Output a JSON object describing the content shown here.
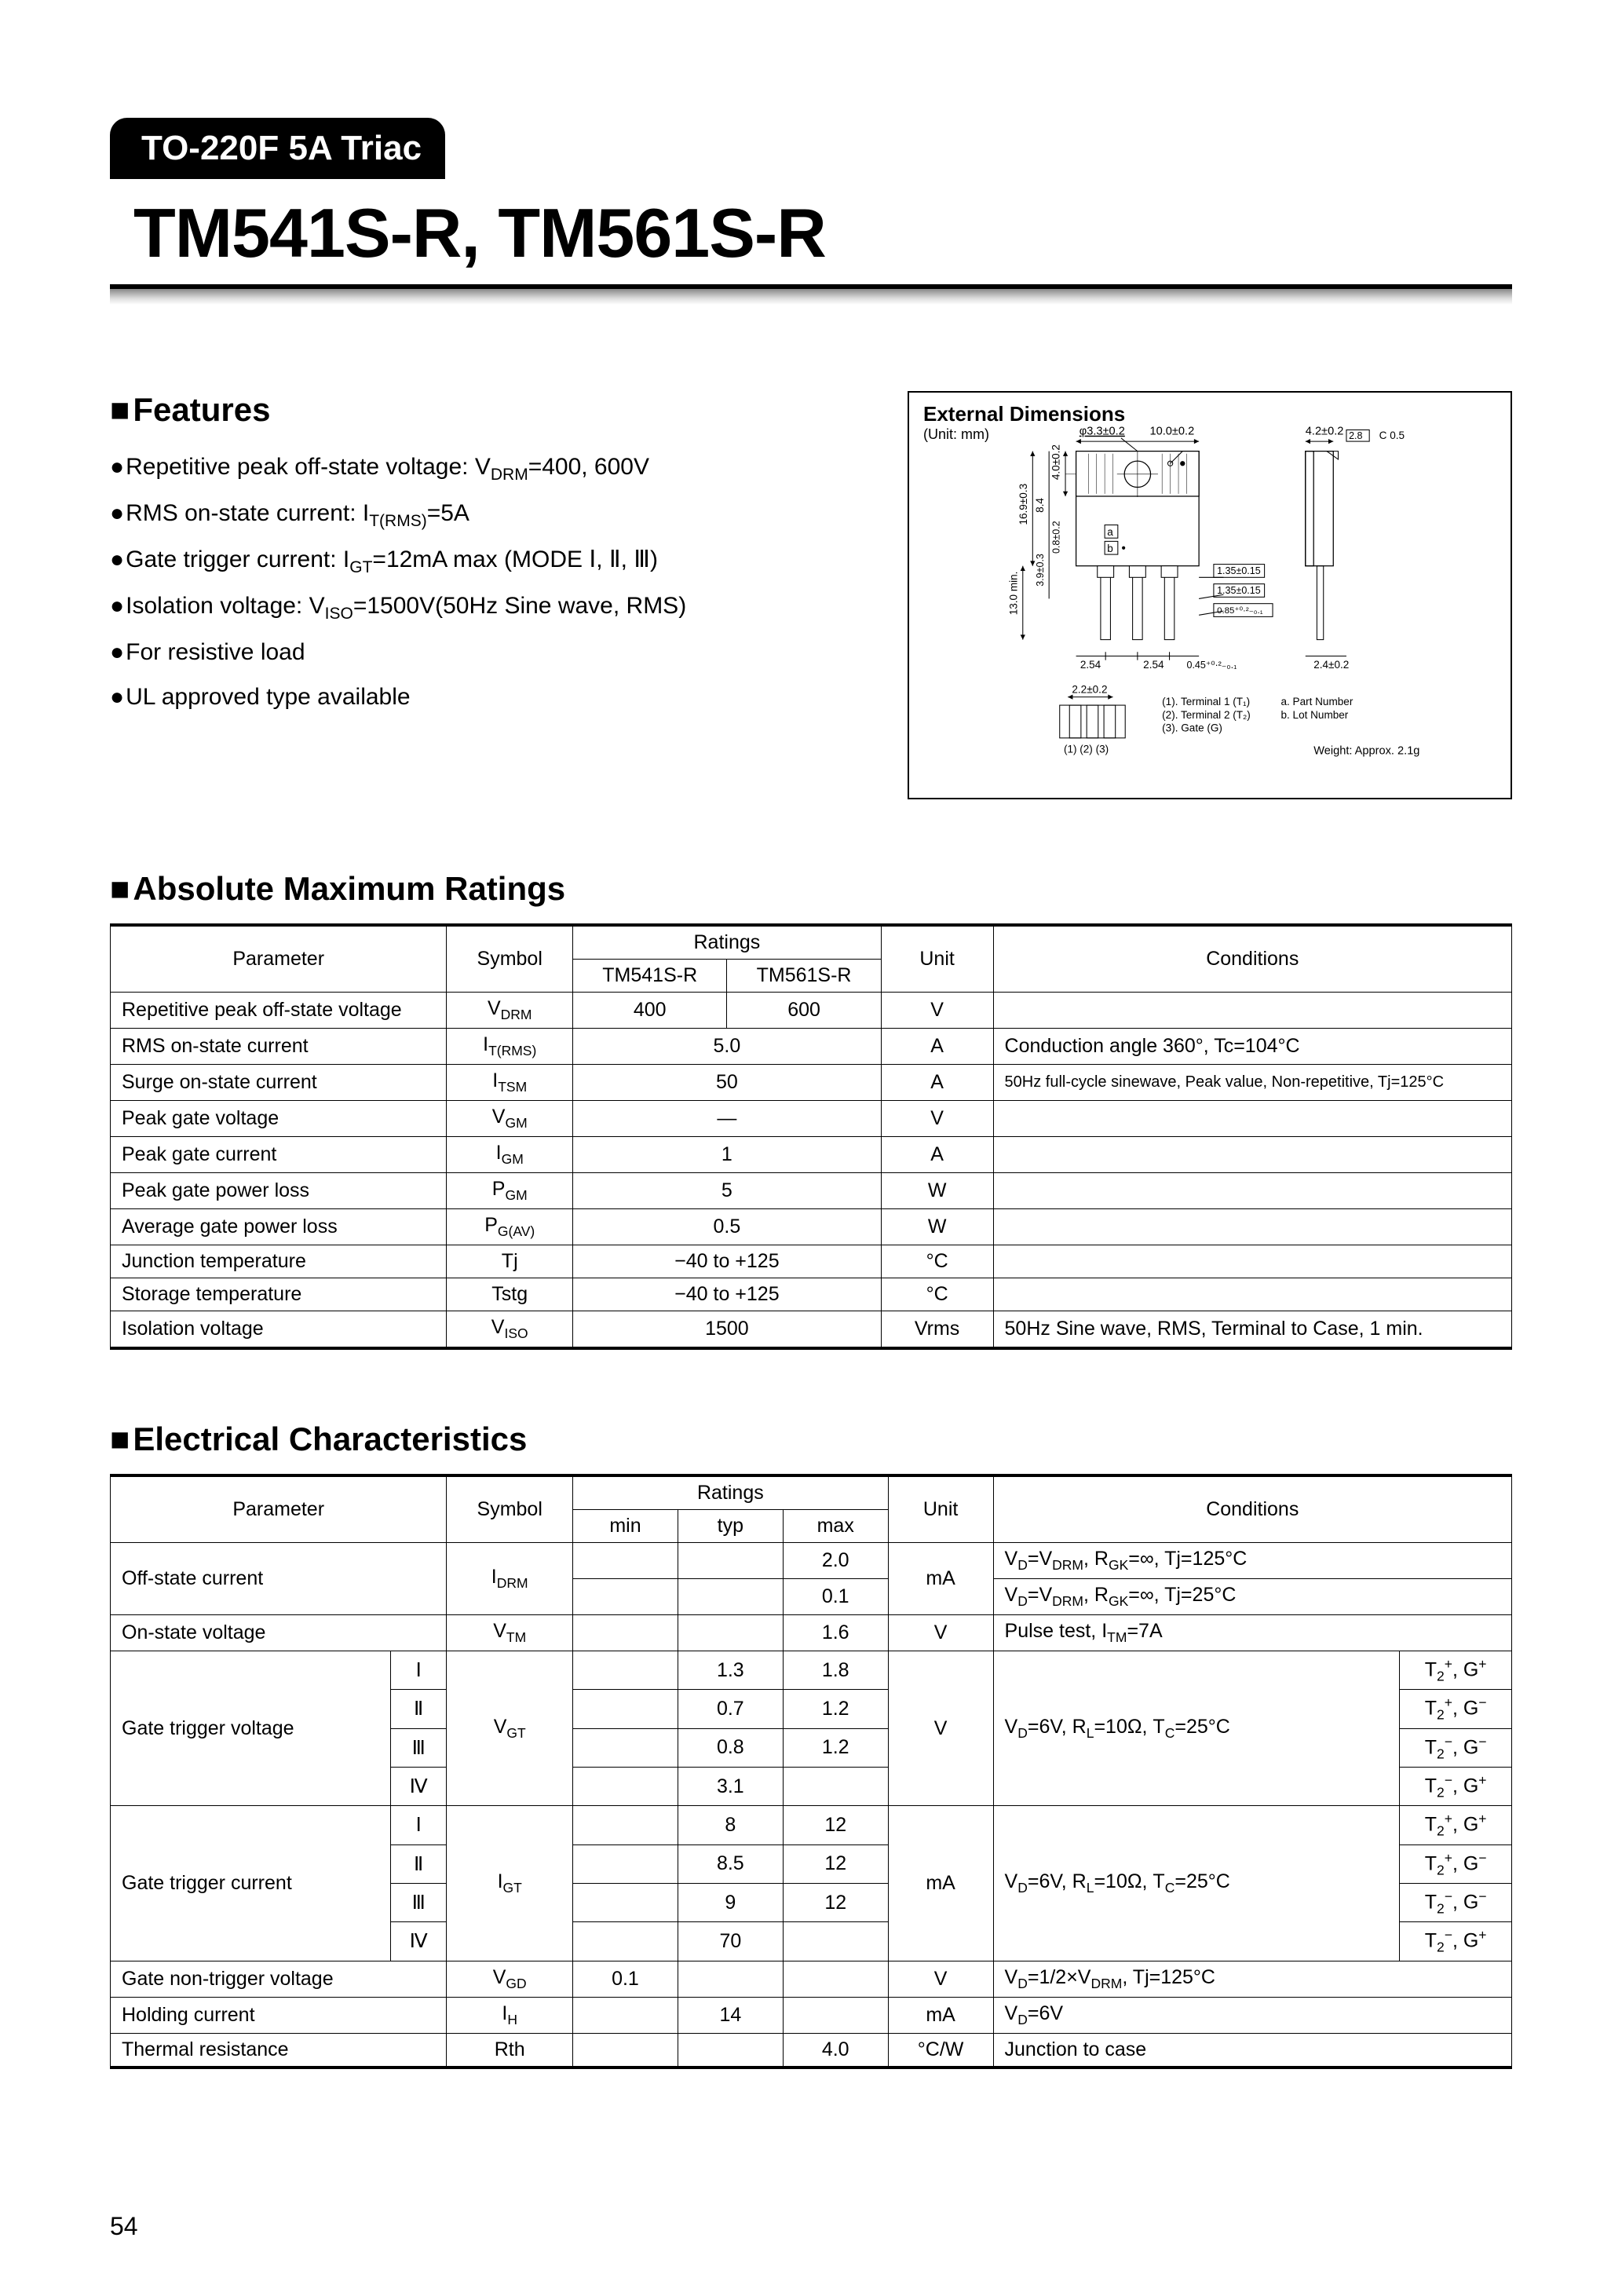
{
  "header": {
    "tag": "TO-220F 5A Triac",
    "title": "TM541S-R, TM561S-R"
  },
  "features": {
    "heading": "Features",
    "items": [
      "Repetitive peak off-state voltage: V<sub>DRM</sub>=400, 600V",
      "RMS on-state current: I<sub>T(RMS)</sub>=5A",
      "Gate trigger current: I<sub>GT</sub>=12mA max (MODE <span class='roman'>Ⅰ</span>, <span class='roman'>Ⅱ</span>, <span class='roman'>Ⅲ</span>)",
      "Isolation voltage: V<sub>ISO</sub>=1500V(50Hz Sine wave, RMS)",
      "For resistive load",
      "UL approved type available"
    ]
  },
  "dimensions": {
    "title": "External Dimensions",
    "unit": "(Unit: mm)",
    "labels": {
      "d1": "φ3.3±0.2",
      "d2": "10.0±0.2",
      "d3": "4.2±0.2",
      "d4": "2.8",
      "d5": "C 0.5",
      "d6": "4.0±0.2",
      "d7": "8.4",
      "d8": "16.9±0.3",
      "d9": "0.8±0.2",
      "d10": "3.9±0.3",
      "d11": "13.0 min.",
      "d12": "1.35±0.15",
      "d13": "1.35±0.15",
      "d14": "0.85⁺⁰·²₋₀.₁",
      "d15": "2.54",
      "d151": "2.54",
      "d16": "0.45⁺⁰·²₋₀.₁",
      "d17": "2.4±0.2",
      "d18": "2.2±0.2",
      "t1": "(1). Terminal 1 (T₁)",
      "t2": "(2). Terminal 2 (T₂)",
      "t3": "(3). Gate (G)",
      "a": "a. Part Number",
      "b": "b. Lot Number",
      "la": "a",
      "lb": "b",
      "pins": "(1) (2) (3)",
      "weight": "Weight: Approx. 2.1g"
    }
  },
  "amr": {
    "heading": "Absolute Maximum Ratings",
    "head": {
      "param": "Parameter",
      "symbol": "Symbol",
      "ratings": "Ratings",
      "p1": "TM541S-R",
      "p2": "TM561S-R",
      "unit": "Unit",
      "cond": "Conditions"
    },
    "rows": [
      {
        "param": "Repetitive peak off-state voltage",
        "sym": "V<sub>DRM</sub>",
        "r1": "400",
        "r2": "600",
        "unit": "V",
        "cond": ""
      },
      {
        "param": "RMS on-state current",
        "sym": "I<sub>T(RMS)</sub>",
        "r": "5.0",
        "unit": "A",
        "cond": "Conduction angle 360°, Tc=104°C"
      },
      {
        "param": "Surge on-state current",
        "sym": "I<sub>TSM</sub>",
        "r": "50",
        "unit": "A",
        "cond": "50Hz full-cycle sinewave, Peak value, Non-repetitive, Tj=125°C"
      },
      {
        "param": "Peak gate voltage",
        "sym": "V<sub>GM</sub>",
        "r": "—",
        "unit": "V",
        "cond": ""
      },
      {
        "param": "Peak gate current",
        "sym": "I<sub>GM</sub>",
        "r": "1",
        "unit": "A",
        "cond": ""
      },
      {
        "param": "Peak gate power loss",
        "sym": "P<sub>GM</sub>",
        "r": "5",
        "unit": "W",
        "cond": ""
      },
      {
        "param": "Average gate power loss",
        "sym": "P<sub>G(AV)</sub>",
        "r": "0.5",
        "unit": "W",
        "cond": ""
      },
      {
        "param": "Junction temperature",
        "sym": "Tj",
        "r": "−40 to +125",
        "unit": "°C",
        "cond": ""
      },
      {
        "param": "Storage temperature",
        "sym": "Tstg",
        "r": "−40 to +125",
        "unit": "°C",
        "cond": ""
      },
      {
        "param": "Isolation voltage",
        "sym": "V<sub>ISO</sub>",
        "r": "1500",
        "unit": "Vrms",
        "cond": "50Hz Sine wave, RMS, Terminal to Case, 1 min."
      }
    ]
  },
  "ec": {
    "heading": "Electrical Characteristics",
    "head": {
      "param": "Parameter",
      "symbol": "Symbol",
      "ratings": "Ratings",
      "min": "min",
      "typ": "typ",
      "max": "max",
      "unit": "Unit",
      "cond": "Conditions"
    },
    "off": {
      "param": "Off-state current",
      "sym": "I<sub>DRM</sub>",
      "r1max": "2.0",
      "unit": "mA",
      "c1": "V<sub>D</sub>=V<sub>DRM</sub>, R<sub>GK</sub>=∞, Tj=125°C",
      "r2max": "0.1",
      "c2": "V<sub>D</sub>=V<sub>DRM</sub>, R<sub>GK</sub>=∞, Tj=25°C"
    },
    "on": {
      "param": "On-state voltage",
      "sym": "V<sub>TM</sub>",
      "max": "1.6",
      "unit": "V",
      "cond": "Pulse test, I<sub>TM</sub>=7A"
    },
    "vgt": {
      "param": "Gate trigger voltage",
      "sym": "V<sub>GT</sub>",
      "unit": "V",
      "cond": "V<sub>D</sub>=6V, R<sub>L</sub>=10Ω, T<sub>C</sub>=25°C",
      "modes": [
        {
          "m": "Ⅰ",
          "typ": "1.3",
          "max": "1.8",
          "q": "T<sub>2</sub><sup>+</sup>, G<sup>+</sup>"
        },
        {
          "m": "Ⅱ",
          "typ": "0.7",
          "max": "1.2",
          "q": "T<sub>2</sub><sup>+</sup>, G<sup>−</sup>"
        },
        {
          "m": "Ⅲ",
          "typ": "0.8",
          "max": "1.2",
          "q": "T<sub>2</sub><sup>−</sup>, G<sup>−</sup>"
        },
        {
          "m": "Ⅳ",
          "typ": "3.1",
          "max": "",
          "q": "T<sub>2</sub><sup>−</sup>, G<sup>+</sup>"
        }
      ]
    },
    "igt": {
      "param": "Gate trigger current",
      "sym": "I<sub>GT</sub>",
      "unit": "mA",
      "cond": "V<sub>D</sub>=6V, R<sub>L</sub>=10Ω, T<sub>C</sub>=25°C",
      "modes": [
        {
          "m": "Ⅰ",
          "typ": "8",
          "max": "12",
          "q": "T<sub>2</sub><sup>+</sup>, G<sup>+</sup>"
        },
        {
          "m": "Ⅱ",
          "typ": "8.5",
          "max": "12",
          "q": "T<sub>2</sub><sup>+</sup>, G<sup>−</sup>"
        },
        {
          "m": "Ⅲ",
          "typ": "9",
          "max": "12",
          "q": "T<sub>2</sub><sup>−</sup>, G<sup>−</sup>"
        },
        {
          "m": "Ⅳ",
          "typ": "70",
          "max": "",
          "q": "T<sub>2</sub><sup>−</sup>, G<sup>+</sup>"
        }
      ]
    },
    "vgd": {
      "param": "Gate non-trigger voltage",
      "sym": "V<sub>GD</sub>",
      "min": "0.1",
      "unit": "V",
      "cond": "V<sub>D</sub>=1/2×V<sub>DRM</sub>, Tj=125°C"
    },
    "ih": {
      "param": "Holding current",
      "sym": "I<sub>H</sub>",
      "typ": "14",
      "unit": "mA",
      "cond": "V<sub>D</sub>=6V"
    },
    "rth": {
      "param": "Thermal resistance",
      "sym": "Rth",
      "max": "4.0",
      "unit": "°C/W",
      "cond": "Junction to case"
    }
  },
  "pagenum": "54"
}
